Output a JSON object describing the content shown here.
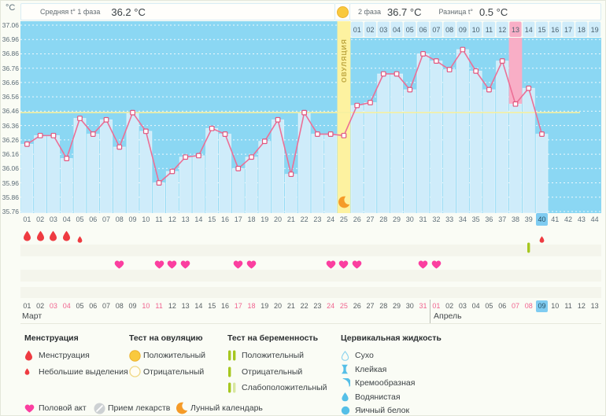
{
  "header": {
    "unit": "°C",
    "phase1": {
      "label": "Средняя t° 1 фаза",
      "value": "36.2 °C"
    },
    "phase2": {
      "label": "2 фаза",
      "value": "36.7 °C"
    },
    "diff": {
      "label": "Разница t°",
      "value": "0.5 °C"
    },
    "ovulation_column_label": "ОВУЛЯЦИЯ"
  },
  "chart_data": {
    "type": "line",
    "title": "Basal body temperature cycle chart",
    "ylabel": "°C",
    "ylim": [
      35.76,
      37.06
    ],
    "grid": true,
    "y_ticks": [
      "37.06",
      "36.96",
      "36.86",
      "36.76",
      "36.66",
      "36.56",
      "36.46",
      "36.36",
      "36.26",
      "36.16",
      "36.06",
      "35.96",
      "35.86",
      "35.76"
    ],
    "x_cycle_days": [
      "01",
      "02",
      "03",
      "04",
      "05",
      "06",
      "07",
      "08",
      "09",
      "10",
      "11",
      "12",
      "13",
      "14",
      "15",
      "16",
      "17",
      "18",
      "19",
      "20",
      "21",
      "22",
      "23",
      "24",
      "25",
      "26",
      "27",
      "28",
      "29",
      "30",
      "31",
      "32",
      "33",
      "34",
      "35",
      "36",
      "37",
      "38",
      "39",
      "40",
      "41",
      "42",
      "43",
      "44"
    ],
    "temps_by_cycle_day": [
      36.23,
      36.29,
      36.29,
      36.13,
      36.41,
      36.3,
      36.4,
      36.21,
      36.45,
      36.32,
      35.96,
      36.04,
      36.14,
      36.15,
      36.34,
      36.3,
      36.06,
      36.14,
      36.25,
      36.4,
      36.02,
      36.45,
      36.3,
      36.3,
      36.29,
      36.5,
      36.52,
      36.72,
      36.72,
      36.61,
      36.86,
      36.81,
      36.75,
      36.89,
      36.74,
      36.61,
      36.81,
      36.51,
      36.62,
      36.3,
      null,
      null,
      null,
      null
    ],
    "coverline": 36.45,
    "ovulation_cycle_day": 25,
    "highlighted_cycle_day": 38,
    "current_cycle_day": 40,
    "post_ovulation_day_numbers": [
      "01",
      "02",
      "03",
      "04",
      "05",
      "06",
      "07",
      "08",
      "09",
      "10",
      "11",
      "12",
      "13",
      "14",
      "15",
      "16",
      "17",
      "18",
      "19"
    ],
    "post_ovulation_highlighted": "13"
  },
  "events": {
    "menstruation": [
      {
        "cycle_day": 1,
        "size": "large"
      },
      {
        "cycle_day": 2,
        "size": "large"
      },
      {
        "cycle_day": 3,
        "size": "large"
      },
      {
        "cycle_day": 4,
        "size": "large"
      },
      {
        "cycle_day": 5,
        "size": "small"
      },
      {
        "cycle_day": 40,
        "size": "small"
      }
    ],
    "intercourse_days": [
      8,
      11,
      12,
      13,
      17,
      18,
      24,
      25,
      26,
      31,
      32
    ],
    "pregnancy_tests": [
      {
        "cycle_day": 39,
        "result": "Отрицательный"
      }
    ],
    "lunar_calendar_days": [
      25
    ]
  },
  "dates": {
    "month1": {
      "name": "Март",
      "days": [
        "01",
        "02",
        "03",
        "04",
        "05",
        "06",
        "07",
        "08",
        "09",
        "10",
        "11",
        "12",
        "13",
        "14",
        "15",
        "16",
        "17",
        "18",
        "19",
        "20",
        "21",
        "22",
        "23",
        "24",
        "25",
        "26",
        "27",
        "28",
        "29",
        "30",
        "31"
      ],
      "weekend_days": [
        "03",
        "04",
        "10",
        "11",
        "17",
        "18",
        "24",
        "25",
        "31"
      ]
    },
    "month2": {
      "name": "Апрель",
      "days": [
        "01",
        "02",
        "03",
        "04",
        "05",
        "06",
        "07",
        "08",
        "09",
        "10",
        "11",
        "12",
        "13"
      ],
      "weekend_days": [
        "01",
        "07",
        "08"
      ],
      "today": "09"
    }
  },
  "legend": {
    "sections": [
      {
        "title": "Менструация",
        "items": [
          {
            "icon": "drop-large",
            "label": "Менструация"
          },
          {
            "icon": "drop-small",
            "label": "Небольшие выделения"
          }
        ]
      },
      {
        "title": "Тест на овуляцию",
        "items": [
          {
            "icon": "circle-filled",
            "label": "Положительный"
          },
          {
            "icon": "circle-outline",
            "label": "Отрицательный"
          }
        ]
      },
      {
        "title": "Тест на беременность",
        "items": [
          {
            "icon": "bar-double",
            "label": "Положительный"
          },
          {
            "icon": "bar-single",
            "label": "Отрицательный"
          },
          {
            "icon": "bar-weak",
            "label": "Слабоположительный"
          }
        ]
      },
      {
        "title": "Цервикальная жидкость",
        "items": [
          {
            "icon": "cf-dry",
            "label": "Сухо"
          },
          {
            "icon": "cf-sticky",
            "label": "Клейкая"
          },
          {
            "icon": "cf-creamy",
            "label": "Кремообразная"
          },
          {
            "icon": "cf-watery",
            "label": "Водянистая"
          },
          {
            "icon": "cf-eggwhite",
            "label": "Яичный белок"
          }
        ]
      }
    ],
    "footer": [
      {
        "icon": "heart",
        "label": "Половой акт"
      },
      {
        "icon": "pill",
        "label": "Прием лекарств"
      },
      {
        "icon": "moon",
        "label": "Лунный календарь"
      }
    ]
  },
  "colors": {
    "plot_bg": "#8bd7f3",
    "area_fill": "#cfecfa",
    "line_pink": "#ec6f96",
    "marker_stroke": "#e0557e",
    "ovulation_band": "#fdf2a0",
    "highlight_band": "#f8aec6",
    "coverline": "#f5f0a0",
    "menstruation_red": "#ee3b41",
    "intercourse_pink": "#fb3fa0",
    "test_green": "#a6c71f",
    "ovulation_yellow": "#f9c93e",
    "cervical_blue": "#55bfe7",
    "lunar_orange": "#f59b28",
    "today_blue": "#7fccf1",
    "weekend_pink": "#f0648f"
  }
}
